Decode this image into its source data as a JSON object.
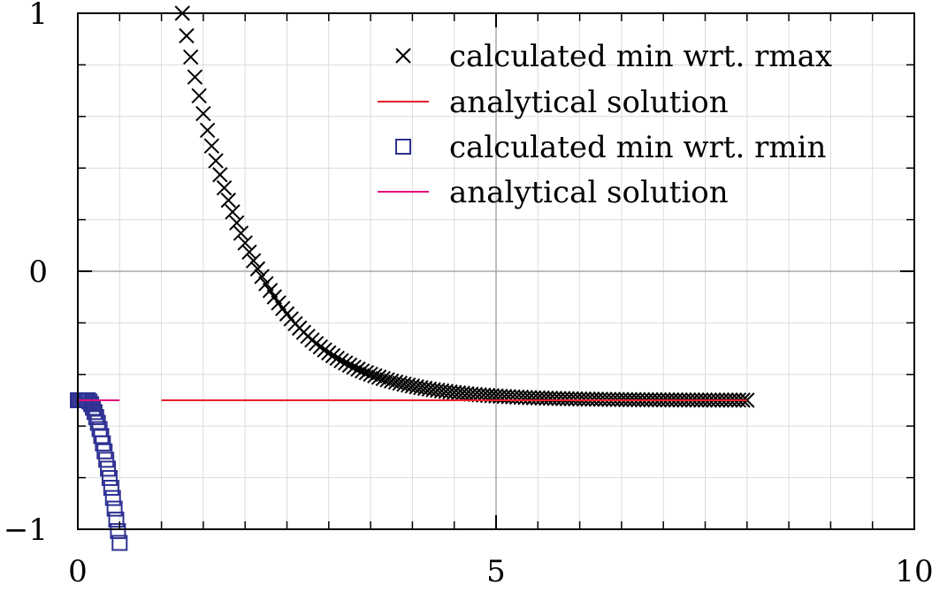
{
  "chart_data": {
    "type": "scatter",
    "title": "",
    "xlabel": "",
    "ylabel": "",
    "xlim": [
      0,
      10
    ],
    "ylim": [
      -1,
      1
    ],
    "grid": true,
    "legend_position": "top-right",
    "x_ticks": [
      0,
      5,
      10
    ],
    "x_tick_labels": [
      "0",
      "5",
      "10"
    ],
    "y_ticks": [
      -1,
      0,
      1
    ],
    "y_tick_labels": [
      "−1",
      "0",
      "1"
    ],
    "x_minor_step": 0.5,
    "y_minor_step": 0.2,
    "series": [
      {
        "name": "calculated min wrt. rmax",
        "kind": "marker",
        "marker": "x",
        "color": "#000000",
        "x_start": 1.25,
        "x_end": 8.0,
        "x_step": 0.05,
        "asymptote": -0.5,
        "amplitude": 1.5,
        "decay_from": 1.25,
        "decay_rate": 1.2
      },
      {
        "name": "analytical solution",
        "kind": "line",
        "color": "#e8202a",
        "x": [
          1.0,
          8.0
        ],
        "y": [
          -0.5,
          -0.5
        ]
      },
      {
        "name": "calculated min wrt. rmin",
        "kind": "marker",
        "marker": "square",
        "color": "#2e3192",
        "x_start": 0.0,
        "x_end": 0.5,
        "x_step": 0.02,
        "flat_value": -0.5,
        "flat_until": 0.12,
        "drop_coeff": 2.6,
        "drop_power": 1.6
      },
      {
        "name": "analytical solution",
        "kind": "line",
        "color": "#e0107a",
        "x": [
          0.0,
          0.5
        ],
        "y": [
          -0.5,
          -0.5
        ]
      }
    ]
  }
}
